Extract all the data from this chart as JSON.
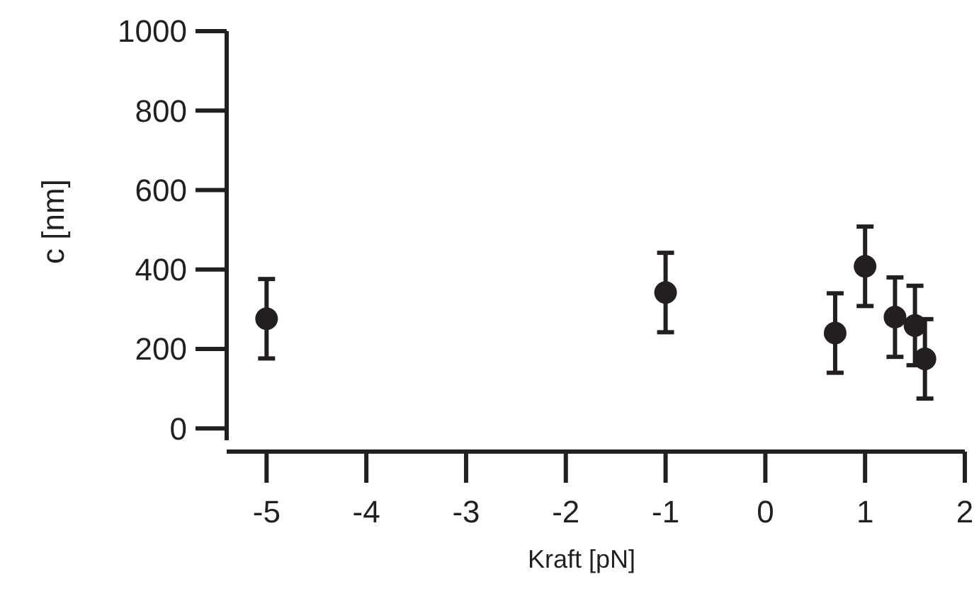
{
  "chart_data": {
    "type": "scatter",
    "xlabel": "Kraft [pN]",
    "ylabel": "c [nm]",
    "x": [
      -5,
      -1,
      0.7,
      1,
      1.3,
      1.5,
      1.6
    ],
    "values": [
      276,
      342,
      240,
      408,
      280,
      259,
      175
    ],
    "errors": [
      100,
      100,
      100,
      100,
      100,
      100,
      100
    ],
    "color": "#231f20",
    "marker": "circle",
    "xlim": [
      -5.4,
      2
    ],
    "xticks": [
      -5,
      -4,
      -3,
      -2,
      -1,
      0,
      1,
      2
    ],
    "ylim": [
      -30,
      1000
    ],
    "yticks": [
      0,
      200,
      400,
      600,
      800,
      1000
    ]
  }
}
